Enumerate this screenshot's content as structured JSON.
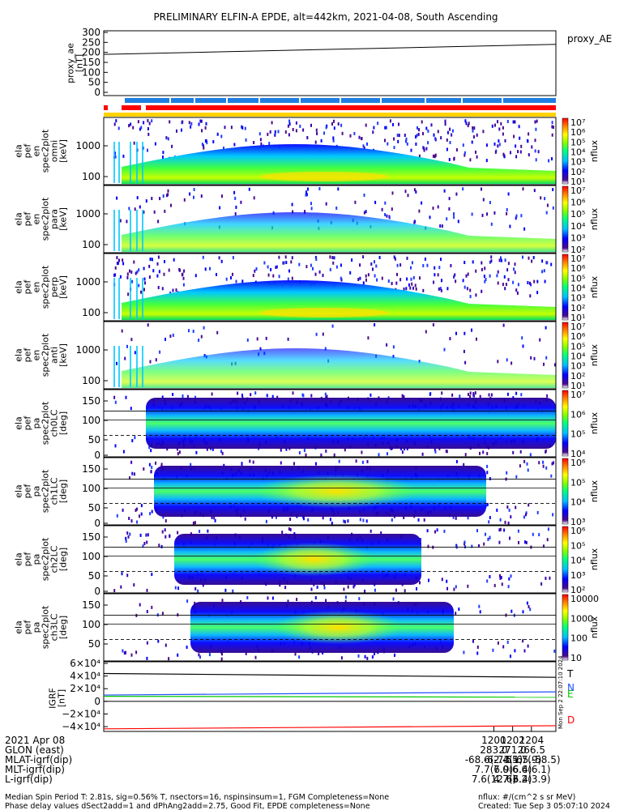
{
  "title": "PRELIMINARY ELFIN-A EPDE, alt=442km, 2021-04-08, South Ascending",
  "colors": {
    "red": "#ff0000",
    "blue": "#1e7fe0",
    "yellow": "#ffd200",
    "green": "#00cc00"
  },
  "chart_data": [
    {
      "type": "line",
      "ylabel": "proxy_ae [nT]",
      "legend": "proxy_AE",
      "yticks": [
        "300",
        "250",
        "200",
        "150",
        "100",
        "50",
        "0"
      ],
      "ylim": [
        0,
        300
      ],
      "x": [
        1158.5,
        1206.6
      ],
      "values": [
        190,
        240
      ]
    },
    {
      "type": "heatmap",
      "ylabel": "ela pef en spec2plot omni [keV]",
      "yticks": [
        "1000",
        "100"
      ],
      "colorbar_label": "nflux",
      "colorbar_ticks": [
        "10⁷",
        "10⁶",
        "10⁵",
        "10⁴",
        "10³",
        "10²",
        "10¹"
      ]
    },
    {
      "type": "heatmap",
      "ylabel": "ela pef en spec2plot para [keV]",
      "yticks": [
        "1000",
        "100"
      ],
      "colorbar_label": "nflux",
      "colorbar_ticks": [
        "10⁷",
        "10⁶",
        "10⁵",
        "10⁴",
        "10³",
        "10²"
      ]
    },
    {
      "type": "heatmap",
      "ylabel": "ela pef en spec2plot perp [keV]",
      "yticks": [
        "1000",
        "100"
      ],
      "colorbar_label": "nflux",
      "colorbar_ticks": [
        "10⁷",
        "10⁶",
        "10⁵",
        "10⁴",
        "10³",
        "10²",
        "10¹"
      ]
    },
    {
      "type": "heatmap",
      "ylabel": "ela pef en spec2plot anti [keV]",
      "yticks": [
        "1000",
        "100"
      ],
      "colorbar_label": "nflux",
      "colorbar_ticks": [
        "10⁷",
        "10⁶",
        "10⁵",
        "10⁴",
        "10³",
        "10²",
        "10¹"
      ]
    },
    {
      "type": "heatmap",
      "ylabel": "ela pef pa spec2plot ch0LC [deg]",
      "yticks": [
        "150",
        "100",
        "50",
        "0"
      ],
      "colorbar_label": "nflux",
      "colorbar_ticks": [
        "10⁷",
        "10⁶",
        "10⁵",
        "10⁴"
      ]
    },
    {
      "type": "heatmap",
      "ylabel": "ela pef pa spec2plot ch1LC [deg]",
      "yticks": [
        "150",
        "100",
        "50",
        "0"
      ],
      "colorbar_label": "nflux",
      "colorbar_ticks": [
        "10⁶",
        "10⁵",
        "10⁴",
        "10³"
      ]
    },
    {
      "type": "heatmap",
      "ylabel": "ela pef pa spec2plot ch2LC [deg]",
      "yticks": [
        "150",
        "100",
        "50",
        "0"
      ],
      "colorbar_label": "nflux",
      "colorbar_ticks": [
        "10⁶",
        "10⁵",
        "10⁴",
        "10³",
        "10²"
      ]
    },
    {
      "type": "heatmap",
      "ylabel": "ela pef pa spec2plot ch3LC [deg]",
      "yticks": [
        "150",
        "100",
        "50"
      ],
      "colorbar_label": "nflux",
      "colorbar_ticks": [
        "10000",
        "1000",
        "100",
        "10"
      ]
    },
    {
      "type": "line",
      "ylabel": "IGRF [nT]",
      "yticks": [
        "6×10⁴",
        "4×10⁴",
        "2×10⁴",
        "0",
        "−2×10⁴",
        "−4×10⁴"
      ],
      "ylim": [
        -45000,
        60000
      ],
      "x": [
        1158.5,
        1206.6
      ],
      "series": [
        {
          "name": "T",
          "values": [
            44000,
            38000
          ]
        },
        {
          "name": "N",
          "values": [
            10000,
            15000
          ]
        },
        {
          "name": "E",
          "values": [
            8000,
            6500
          ]
        },
        {
          "name": "D",
          "values": [
            -43500,
            -38500
          ]
        }
      ]
    }
  ],
  "xaxis": {
    "columns": [
      "1200",
      "1202",
      "1204"
    ],
    "rows": [
      {
        "label": "2021 Apr 08",
        "values": [
          "",
          "",
          ""
        ]
      },
      {
        "label": "GLON (east)",
        "values": [
          "283.0",
          "271.0",
          "266.5"
        ]
      },
      {
        "label": "MLAT-igrf(dip)",
        "values": [
          "-68.6(-73.1)",
          "-62.4(-65.9)",
          "-55.7(-58.5)"
        ]
      },
      {
        "label": "MLT-igrf(dip)",
        "values": [
          "7.7(6.9)",
          "7.0(6.4)",
          "6.6(6.1)"
        ]
      },
      {
        "label": "L-igrf(dip)",
        "values": [
          "7.6(12.6)",
          "4.7(6.4)",
          "3.2(3.9)"
        ]
      }
    ]
  },
  "footer": {
    "line1_left": "Median Spin Period T: 2.81s, sig=0.56% T, nsectors=16, nspinsinsum=1, FGM Completeness=None",
    "line2_left": "Phase delay values dSect2add=1 and dPhAng2add=2.75, Good Fit, EPDE completeness=None",
    "line1_right": "nflux: #/(cm^2 s sr MeV)",
    "line2_right": "Created: Tue Sep  3 05:07:10 2024",
    "vertical_stamp": "Mon Sep  2 22:07:10 2024"
  }
}
